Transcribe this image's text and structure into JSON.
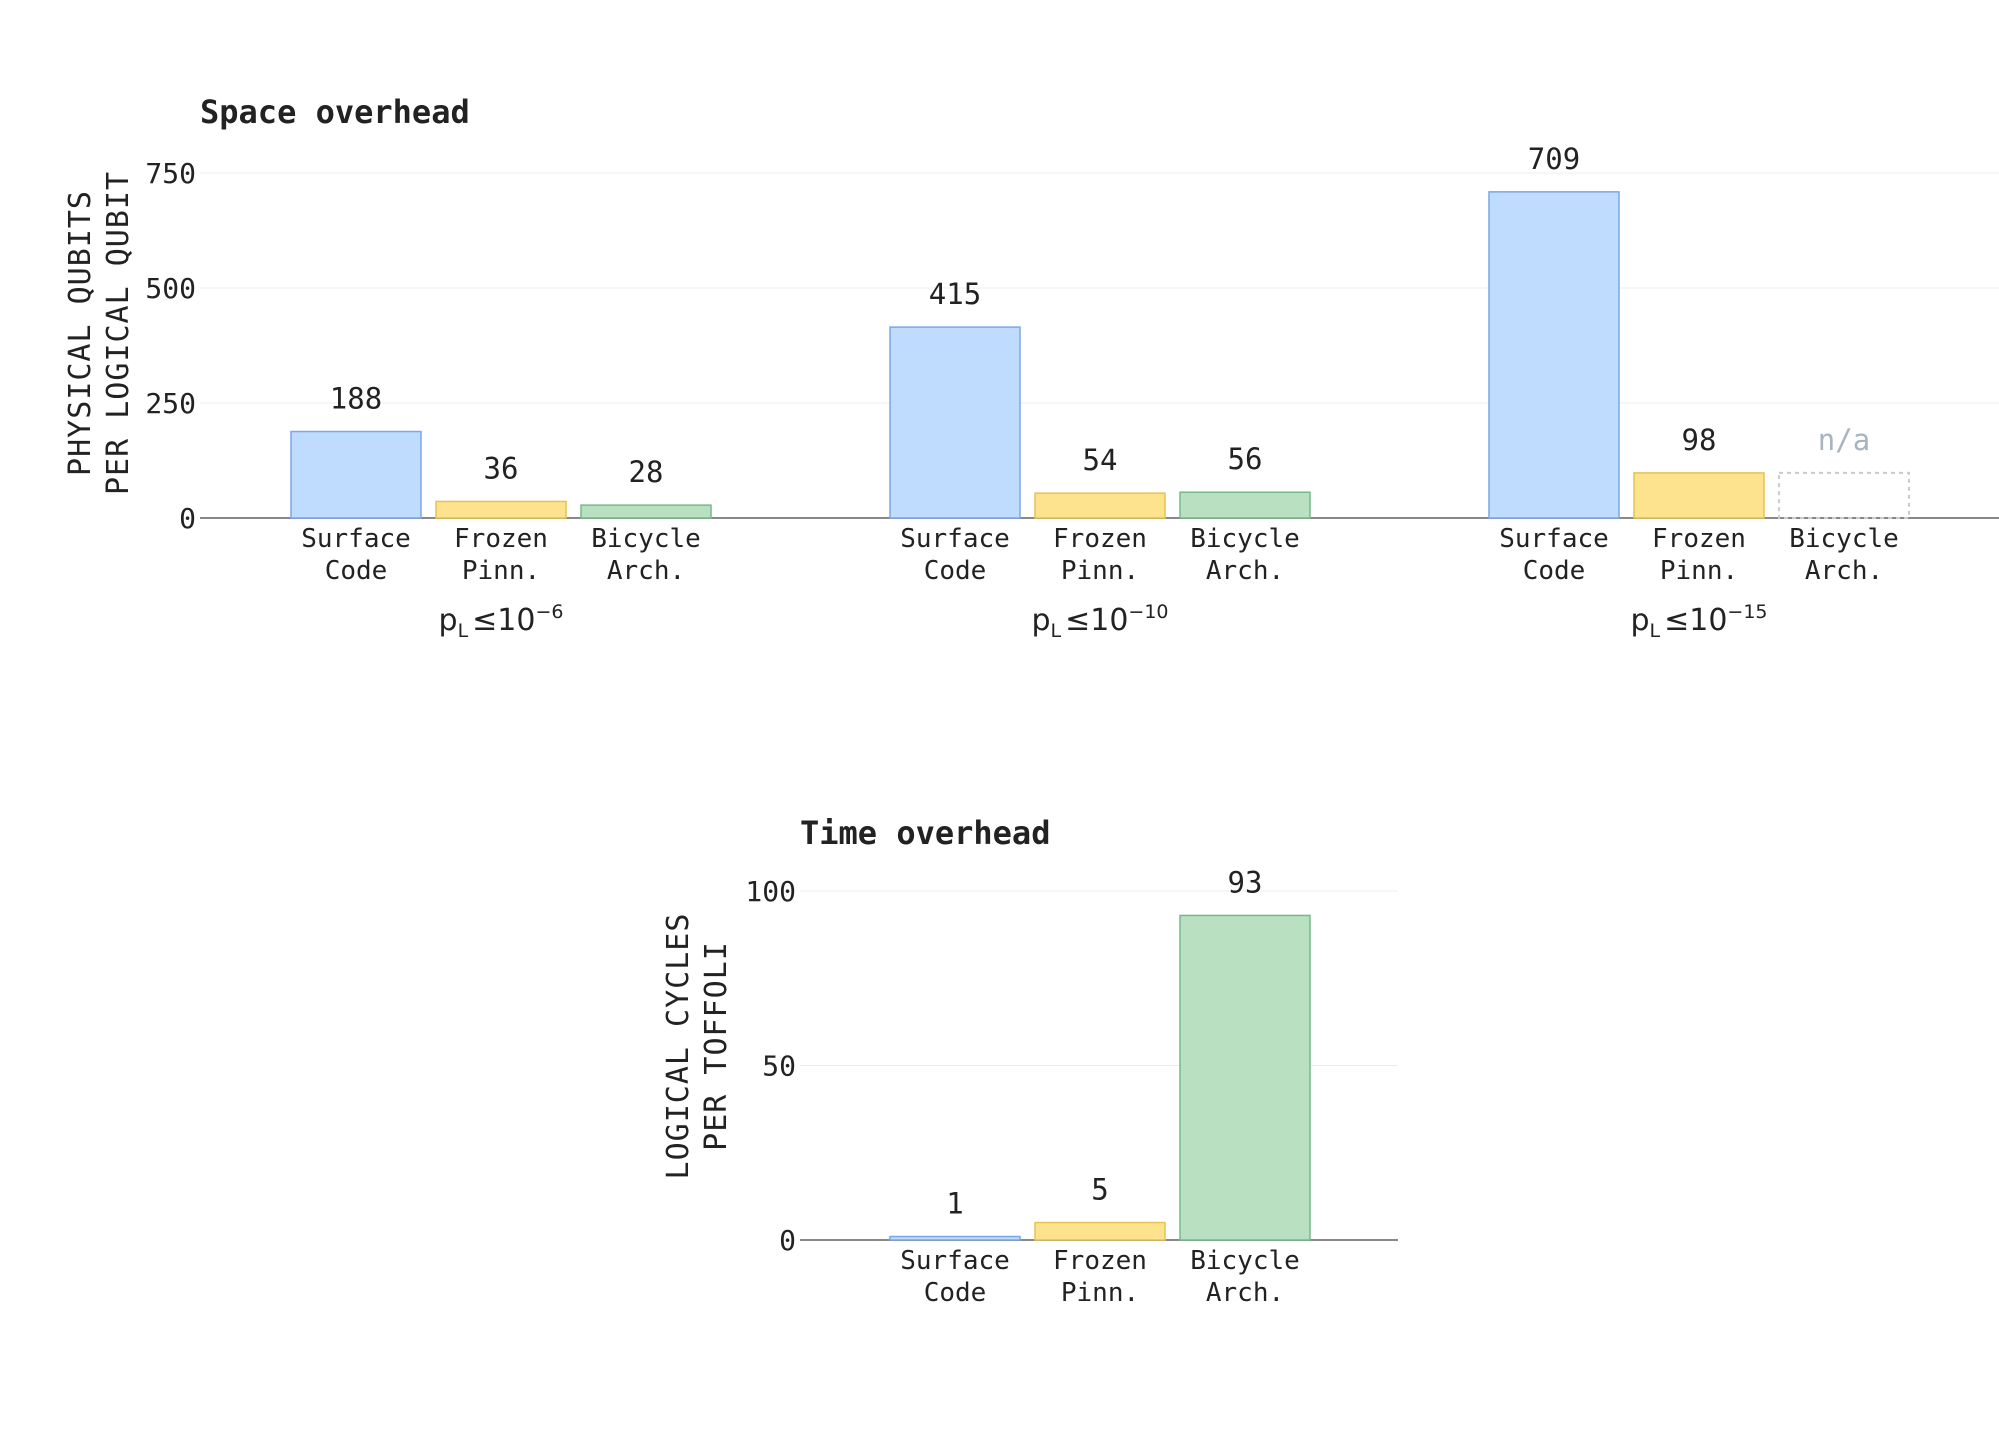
{
  "colors": {
    "surface": "#bfdbfe",
    "surface_stroke": "#7aa7e8",
    "frozen": "#fde38d",
    "frozen_stroke": "#e6c254",
    "bicycle": "#b9e0c1",
    "bicycle_stroke": "#79b889",
    "na_stroke": "#c8ccd2",
    "axis": "#888888",
    "grid": "#ececec"
  },
  "chart_data": [
    {
      "type": "bar",
      "title": "Space overhead",
      "ylabel_line1": "PHYSICAL QUBITS",
      "ylabel_line2": "PER LOGICAL QUBIT",
      "ylim": [
        0,
        750
      ],
      "yticks": [
        0,
        250,
        500,
        750
      ],
      "ytick_labels": [
        "0",
        "250",
        "500",
        "750"
      ],
      "grid": true,
      "categories": [
        {
          "line1": "Surface",
          "line2": "Code"
        },
        {
          "line1": "Frozen",
          "line2": "Pinn."
        },
        {
          "line1": "Bicycle",
          "line2": "Arch."
        }
      ],
      "groups": [
        {
          "base": "p",
          "sub": "L",
          "rel": "≤10",
          "exp": "−6",
          "values": [
            188,
            36,
            28
          ],
          "labels": [
            "188",
            "36",
            "28"
          ]
        },
        {
          "base": "p",
          "sub": "L",
          "rel": "≤10",
          "exp": "−10",
          "values": [
            415,
            54,
            56
          ],
          "labels": [
            "415",
            "54",
            "56"
          ]
        },
        {
          "base": "p",
          "sub": "L",
          "rel": "≤10",
          "exp": "−15",
          "values": [
            709,
            98,
            null
          ],
          "labels": [
            "709",
            "98",
            "n/a"
          ]
        }
      ]
    },
    {
      "type": "bar",
      "title": "Time overhead",
      "ylabel_line1": "LOGICAL CYCLES",
      "ylabel_line2": "PER TOFFOLI",
      "ylim": [
        0,
        100
      ],
      "yticks": [
        0,
        50,
        100
      ],
      "ytick_labels": [
        "0",
        "50",
        "100"
      ],
      "grid": true,
      "categories": [
        {
          "line1": "Surface",
          "line2": "Code"
        },
        {
          "line1": "Frozen",
          "line2": "Pinn."
        },
        {
          "line1": "Bicycle",
          "line2": "Arch."
        }
      ],
      "values": [
        1,
        5,
        93
      ],
      "labels": [
        "1",
        "5",
        "93"
      ]
    }
  ]
}
